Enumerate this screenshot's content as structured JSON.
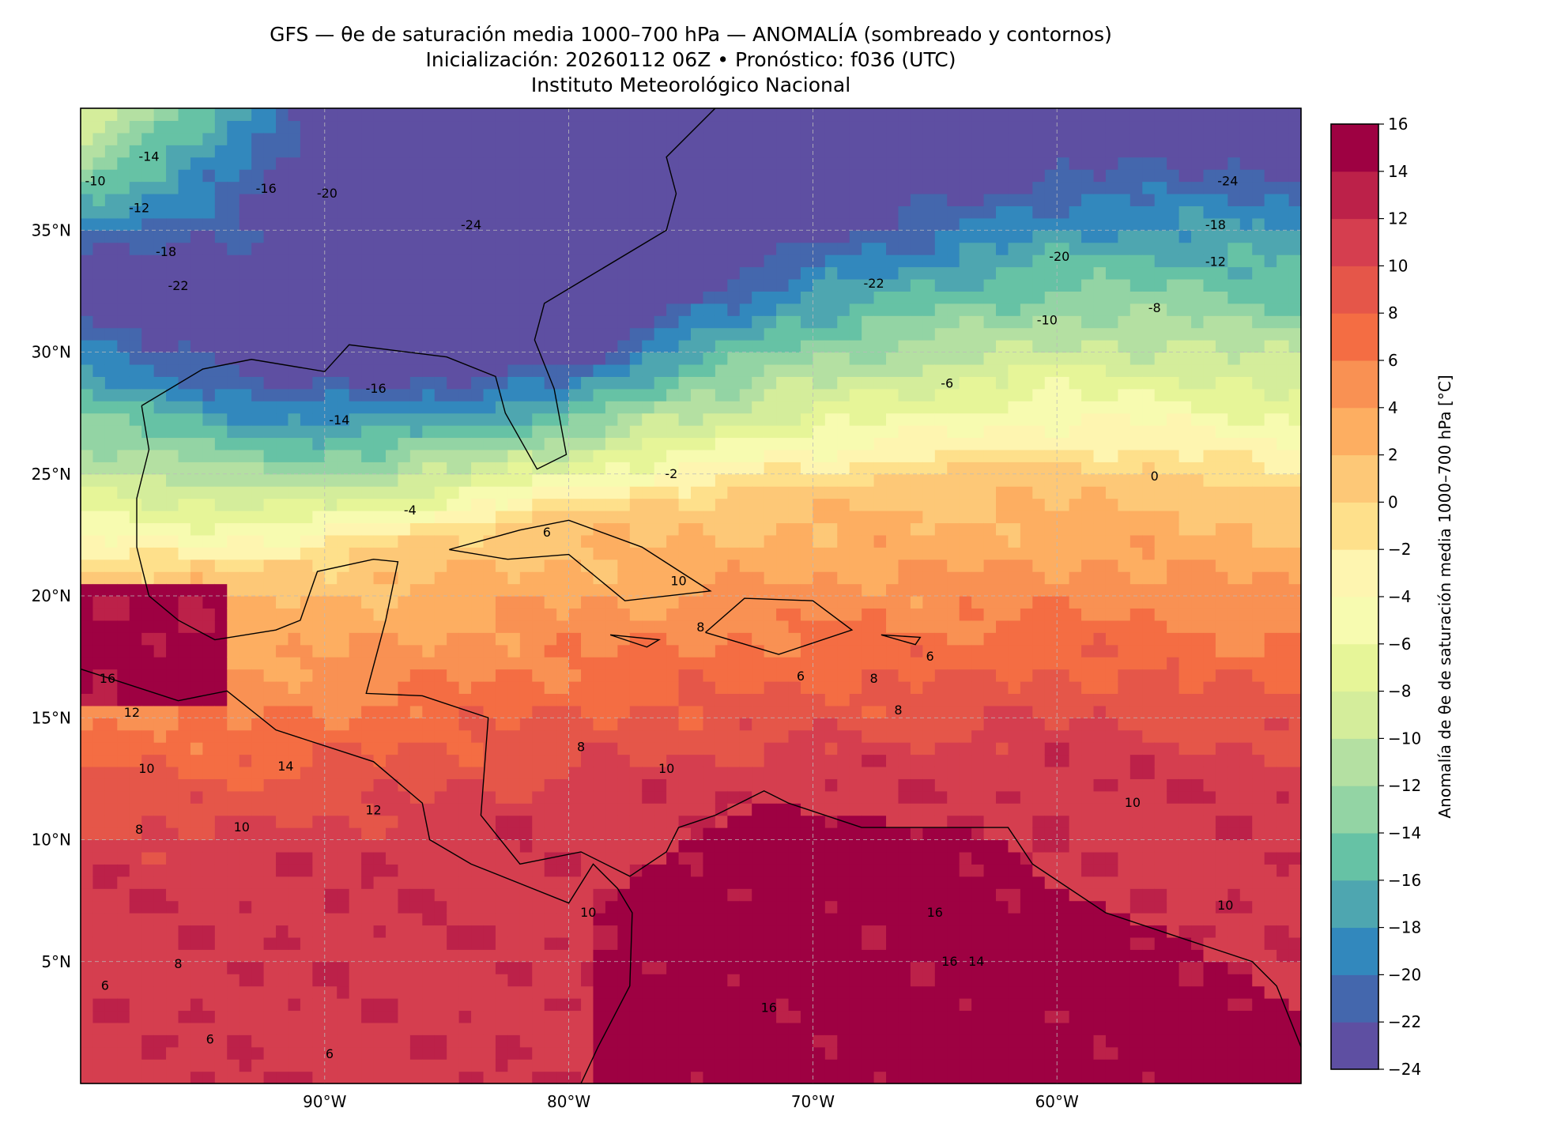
{
  "header": {
    "title": "GFS — θe de saturación media 1000–700 hPa — ANOMALÍA (sombreado y contornos)",
    "subtitle": "Inicialización: 20260112 06Z   •   Pronóstico: f036 (UTC)",
    "institution": "Instituto Meteorológico Nacional"
  },
  "chart_data": {
    "type": "heatmap",
    "title": "GFS — θe de saturación media 1000–700 hPa — ANOMALÍA (sombreado y contornos)",
    "xlabel": "",
    "ylabel": "",
    "xlim": [
      -100,
      -50
    ],
    "ylim": [
      0,
      40
    ],
    "grid": true,
    "x_ticks": [
      {
        "value": -90,
        "label": "90°W"
      },
      {
        "value": -80,
        "label": "80°W"
      },
      {
        "value": -70,
        "label": "70°W"
      },
      {
        "value": -60,
        "label": "60°W"
      }
    ],
    "y_ticks": [
      {
        "value": 35,
        "label": "35°N"
      },
      {
        "value": 30,
        "label": "30°N"
      },
      {
        "value": 25,
        "label": "25°N"
      },
      {
        "value": 20,
        "label": "20°N"
      },
      {
        "value": 15,
        "label": "15°N"
      },
      {
        "value": 10,
        "label": "10°N"
      },
      {
        "value": 5,
        "label": "5°N"
      }
    ],
    "colorbar": {
      "label": "Anomalía de θe de saturación media 1000–700 hPa [°C]",
      "levels": [
        -24,
        -22,
        -20,
        -18,
        -16,
        -14,
        -12,
        -10,
        -8,
        -6,
        -4,
        -2,
        0,
        2,
        4,
        6,
        8,
        10,
        12,
        14,
        16
      ],
      "tick_labels": [
        "−24",
        "−22",
        "−20",
        "−18",
        "−16",
        "−14",
        "−12",
        "−10",
        "−8",
        "−6",
        "−4",
        "−2",
        "0",
        "2",
        "4",
        "6",
        "8",
        "10",
        "12",
        "14",
        "16"
      ],
      "colors": [
        "#5e4fa2",
        "#4467ad",
        "#3288bd",
        "#4ea6b0",
        "#66c2a5",
        "#93d4a4",
        "#b4e0a2",
        "#d4ed9b",
        "#e6f598",
        "#f7fbb0",
        "#fef5b0",
        "#fee08b",
        "#fdc877",
        "#fdae61",
        "#f99153",
        "#f46d43",
        "#e55649",
        "#d53e4f",
        "#bc2149",
        "#9e0142"
      ]
    },
    "contour_labels": [
      {
        "text": "-24",
        "lon": -53.0,
        "lat": 37.0
      },
      {
        "text": "-18",
        "lon": -53.5,
        "lat": 35.2
      },
      {
        "text": "-12",
        "lon": -53.5,
        "lat": 33.7
      },
      {
        "text": "-20",
        "lon": -59.9,
        "lat": 33.9
      },
      {
        "text": "-22",
        "lon": -67.5,
        "lat": 32.8
      },
      {
        "text": "-10",
        "lon": -60.4,
        "lat": 31.3
      },
      {
        "text": "-8",
        "lon": -56.0,
        "lat": 31.8
      },
      {
        "text": "-6",
        "lon": -64.5,
        "lat": 28.7
      },
      {
        "text": "0",
        "lon": -56.0,
        "lat": 24.9
      },
      {
        "text": "-4",
        "lon": -86.5,
        "lat": 23.5
      },
      {
        "text": "-16",
        "lon": -87.9,
        "lat": 28.5
      },
      {
        "text": "-14",
        "lon": -89.4,
        "lat": 27.2
      },
      {
        "text": "-22",
        "lon": -96.0,
        "lat": 32.7
      },
      {
        "text": "-18",
        "lon": -96.5,
        "lat": 34.1
      },
      {
        "text": "-20",
        "lon": -89.9,
        "lat": 36.5
      },
      {
        "text": "-16",
        "lon": -92.4,
        "lat": 36.7
      },
      {
        "text": "-14",
        "lon": -97.2,
        "lat": 38.0
      },
      {
        "text": "-12",
        "lon": -97.6,
        "lat": 35.9
      },
      {
        "text": "-10",
        "lon": -99.4,
        "lat": 37.0
      },
      {
        "text": "-24",
        "lon": -84.0,
        "lat": 35.2
      },
      {
        "text": "-2",
        "lon": -75.8,
        "lat": 25.0
      },
      {
        "text": "6",
        "lon": -80.9,
        "lat": 22.6
      },
      {
        "text": "10",
        "lon": -76.0,
        "lat": 12.9
      },
      {
        "text": "10",
        "lon": -56.9,
        "lat": 11.5
      },
      {
        "text": "12",
        "lon": -88.0,
        "lat": 11.2
      },
      {
        "text": "8",
        "lon": -96.0,
        "lat": 4.9
      },
      {
        "text": "6",
        "lon": -99.0,
        "lat": 4.0
      },
      {
        "text": "16",
        "lon": -65.0,
        "lat": 7.0
      },
      {
        "text": "10",
        "lon": -53.1,
        "lat": 7.3
      },
      {
        "text": "8",
        "lon": -79.5,
        "lat": 13.8
      },
      {
        "text": "6",
        "lon": -70.5,
        "lat": 16.7
      },
      {
        "text": "8",
        "lon": -66.5,
        "lat": 15.3
      },
      {
        "text": "14",
        "lon": -91.6,
        "lat": 13.0
      },
      {
        "text": "16",
        "lon": -71.8,
        "lat": 3.1
      },
      {
        "text": "10",
        "lon": -97.3,
        "lat": 12.9
      },
      {
        "text": "12",
        "lon": -97.9,
        "lat": 15.2
      },
      {
        "text": "16",
        "lon": -98.9,
        "lat": 16.6
      },
      {
        "text": "10",
        "lon": -93.4,
        "lat": 10.5
      },
      {
        "text": "8",
        "lon": -97.6,
        "lat": 10.4
      },
      {
        "text": "6",
        "lon": -94.7,
        "lat": 1.8
      },
      {
        "text": "6",
        "lon": -89.8,
        "lat": 1.2
      },
      {
        "text": "10",
        "lon": -79.2,
        "lat": 7.0
      },
      {
        "text": "16",
        "lon": -64.4,
        "lat": 5.0
      },
      {
        "text": "14",
        "lon": -63.3,
        "lat": 5.0
      },
      {
        "text": "8",
        "lon": -67.5,
        "lat": 16.6
      },
      {
        "text": "6",
        "lon": -65.2,
        "lat": 17.5
      },
      {
        "text": "8",
        "lon": -74.6,
        "lat": 18.7
      },
      {
        "text": "10",
        "lon": -75.5,
        "lat": 20.6
      }
    ]
  }
}
